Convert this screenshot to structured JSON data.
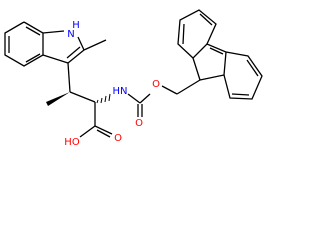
{
  "atoms": {
    "indole_n": "N",
    "indole_h": "H",
    "amide_nh": "HN",
    "ester_o": "O",
    "carbonyl_o": "O",
    "acid_oh": "HO",
    "acid_o": "O"
  }
}
